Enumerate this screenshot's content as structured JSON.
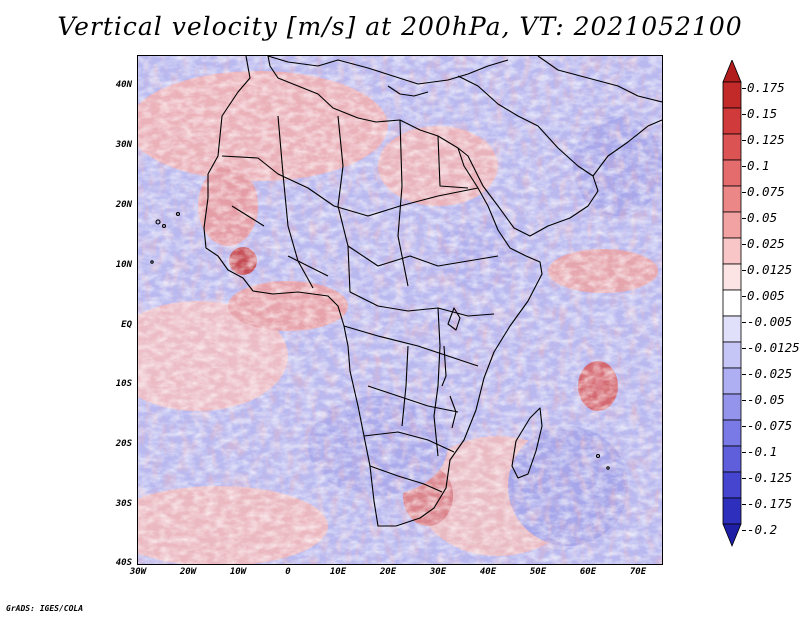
{
  "title": "Vertical velocity [m/s] at 200hPa, VT: 2021052100",
  "credit": "GrADS: IGES/COLA",
  "map": {
    "lat_labels": [
      "40N",
      "30N",
      "20N",
      "10N",
      "EQ",
      "10S",
      "20S",
      "30S",
      "40S"
    ],
    "lon_labels": [
      "30W",
      "20W",
      "10W",
      "0",
      "10E",
      "20E",
      "30E",
      "40E",
      "50E",
      "60E",
      "70E"
    ],
    "lat_range": [
      -40,
      44
    ],
    "lon_range": [
      -30,
      75
    ]
  },
  "colorbar": {
    "labels": [
      "0.175",
      "0.15",
      "0.125",
      "0.1",
      "0.075",
      "0.05",
      "0.025",
      "0.0125",
      "0.005",
      "-0.005",
      "-0.0125",
      "-0.025",
      "-0.05",
      "-0.075",
      "-0.1",
      "-0.125",
      "-0.175",
      "-0.2"
    ],
    "colors": [
      "#b11c1c",
      "#c22a2a",
      "#d13a3a",
      "#dc5353",
      "#e46c6c",
      "#ec8787",
      "#f2a2a2",
      "#f8c6c6",
      "#fce4e4",
      "#ffffff",
      "#e0e0fb",
      "#c6c6f6",
      "#aeaef2",
      "#9494ec",
      "#7a7ae6",
      "#5f5fdc",
      "#4545d0",
      "#2f2fbd",
      "#1f1fa6"
    ]
  }
}
